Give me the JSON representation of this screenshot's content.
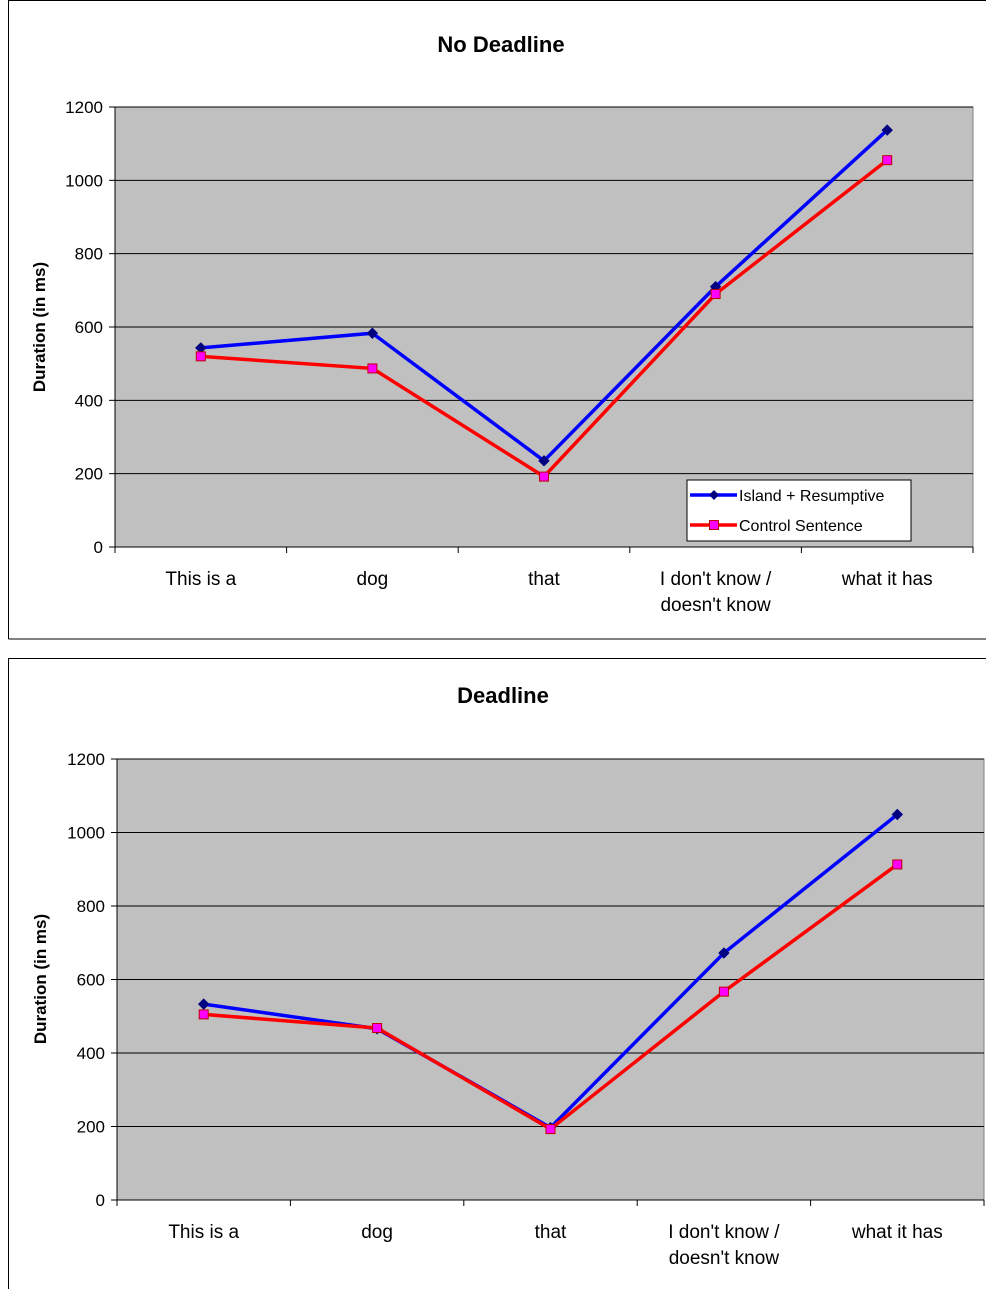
{
  "chart_data": [
    {
      "type": "line",
      "title": "No Deadline",
      "xlabel": "",
      "ylabel": "Duration (in ms)",
      "categories": [
        "This is a",
        "dog",
        "that",
        "I don't know / doesn't know",
        "what it has"
      ],
      "category_lines": [
        [
          "This is a"
        ],
        [
          "dog"
        ],
        [
          "that"
        ],
        [
          "I don't know /",
          "doesn't know"
        ],
        [
          "what it has"
        ]
      ],
      "ylim": [
        0,
        1200
      ],
      "yticks": [
        "0",
        "200",
        "400",
        "600",
        "800",
        "1000",
        "1200"
      ],
      "grid": true,
      "legend_position": "bottom-right",
      "series": [
        {
          "name": "Island + Resumptive",
          "color": "#0000ff",
          "marker": "diamond",
          "marker_color": "#000080",
          "values": [
            543,
            583,
            235,
            710,
            1137
          ]
        },
        {
          "name": "Control Sentence",
          "color": "#ff0000",
          "marker": "square",
          "marker_color": "#ff00ff",
          "values": [
            520,
            487,
            192,
            690,
            1055
          ]
        }
      ],
      "plot_bg": "#c0c0c0"
    },
    {
      "type": "line",
      "title": "Deadline",
      "xlabel": "",
      "ylabel": "Duration (in ms)",
      "categories": [
        "This is a",
        "dog",
        "that",
        "I don't know / doesn't know",
        "what it has"
      ],
      "category_lines": [
        [
          "This is a"
        ],
        [
          "dog"
        ],
        [
          "that"
        ],
        [
          "I don't know /",
          "doesn't know"
        ],
        [
          "what it has"
        ]
      ],
      "ylim": [
        0,
        1200
      ],
      "yticks": [
        "0",
        "200",
        "400",
        "600",
        "800",
        "1000",
        "1200"
      ],
      "grid": true,
      "legend_position": "none",
      "series": [
        {
          "name": "Island + Resumptive",
          "color": "#0000ff",
          "marker": "diamond",
          "marker_color": "#000080",
          "values": [
            533,
            466,
            197,
            672,
            1049
          ]
        },
        {
          "name": "Control Sentence",
          "color": "#ff0000",
          "marker": "square",
          "marker_color": "#ff00ff",
          "values": [
            505,
            468,
            193,
            567,
            913
          ]
        }
      ],
      "plot_bg": "#c0c0c0"
    }
  ]
}
